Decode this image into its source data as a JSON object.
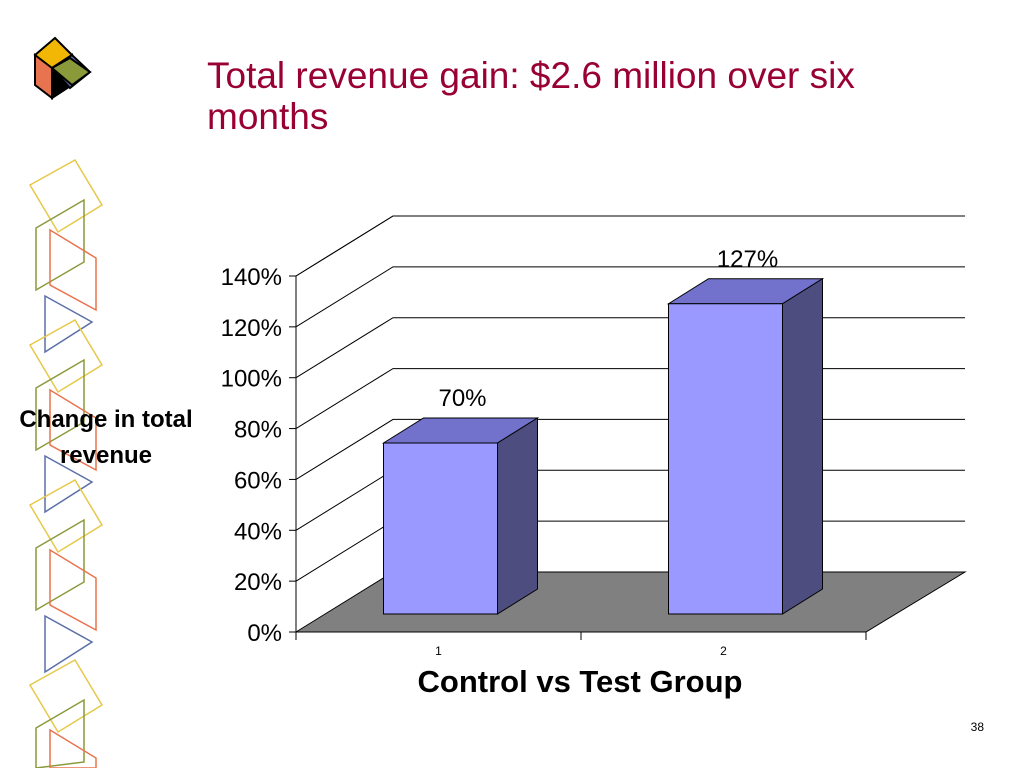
{
  "slide": {
    "title": "Total revenue gain: $2.6 million over six months",
    "page_number": "38"
  },
  "colors": {
    "title": "#990033",
    "bar_front": "#9999FF",
    "bar_side": "#4D4D80",
    "bar_top": "#7272CC",
    "floor": "#808080",
    "logo": [
      "#F2B705",
      "#000000",
      "#5B6FA8",
      "#E8744F",
      "#8A9A3A"
    ]
  },
  "chart_data": {
    "type": "bar",
    "categories": [
      "1",
      "2"
    ],
    "values": [
      70,
      127
    ],
    "data_labels": [
      "70%",
      "127%"
    ],
    "xlabel": "Control vs Test Group",
    "ylabel": "Change in total revenue",
    "ylim": [
      0,
      140
    ],
    "yticks": [
      "0%",
      "20%",
      "40%",
      "60%",
      "80%",
      "100%",
      "120%",
      "140%"
    ],
    "grid": true,
    "legend": "none",
    "style": "3d"
  }
}
